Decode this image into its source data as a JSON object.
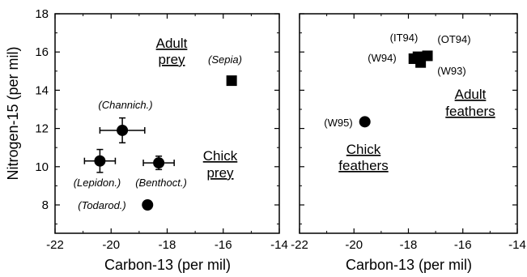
{
  "y_axis_label": "Nitrogen-15 (per mil)",
  "chart_data": [
    {
      "type": "scatter",
      "xlabel": "Carbon-13 (per mil)",
      "ylabel": "Nitrogen-15 (per mil)",
      "xlim": [
        -22,
        -14
      ],
      "ylim": [
        7,
        18
      ],
      "grid": false,
      "x_ticks": [
        "-22",
        "-20",
        "-18",
        "-16",
        "-14"
      ],
      "y_ticks": [
        "8",
        "10",
        "12",
        "14",
        "16",
        "18"
      ],
      "points": [
        {
          "label": "(Channich.)",
          "x": -19.6,
          "y": 11.9,
          "x_err": 0.8,
          "y_err": 0.65,
          "marker": "circle"
        },
        {
          "label": "(Lepidon.)",
          "x": -20.4,
          "y": 10.3,
          "x_err": 0.55,
          "y_err": 0.6,
          "marker": "circle"
        },
        {
          "label": "(Benthoct.)",
          "x": -18.3,
          "y": 10.2,
          "x_err": 0.55,
          "y_err": 0.35,
          "marker": "circle"
        },
        {
          "label": "(Todarod.)",
          "x": -18.7,
          "y": 8.0,
          "x_err": 0,
          "y_err": 0,
          "marker": "circle"
        },
        {
          "label": "(Sepia)",
          "x": -15.7,
          "y": 14.5,
          "x_err": 0,
          "y_err": 0,
          "marker": "square"
        }
      ],
      "group_labels": [
        {
          "line1": "Adult",
          "line2": "prey"
        },
        {
          "line1": "Chick",
          "line2": "prey"
        }
      ]
    },
    {
      "type": "scatter",
      "xlabel": "Carbon-13 (per mil)",
      "xlim": [
        -22,
        -14
      ],
      "ylim": [
        7,
        18
      ],
      "grid": false,
      "x_ticks": [
        "-22",
        "-20",
        "-18",
        "-16",
        "-14"
      ],
      "points": [
        {
          "label": "(W95)",
          "x": -19.6,
          "y": 12.35,
          "marker": "circle"
        },
        {
          "label": "(W94)",
          "x": -17.8,
          "y": 15.65,
          "marker": "square"
        },
        {
          "label": "(IT94)",
          "x": -17.65,
          "y": 15.75,
          "marker": "square"
        },
        {
          "label": "(OT94)",
          "x": -17.3,
          "y": 15.8,
          "marker": "square"
        },
        {
          "label": "(W93)",
          "x": -17.55,
          "y": 15.45,
          "marker": "square"
        }
      ],
      "group_labels": [
        {
          "line1": "Adult",
          "line2": "feathers"
        },
        {
          "line1": "Chick",
          "line2": "feathers"
        }
      ]
    }
  ]
}
